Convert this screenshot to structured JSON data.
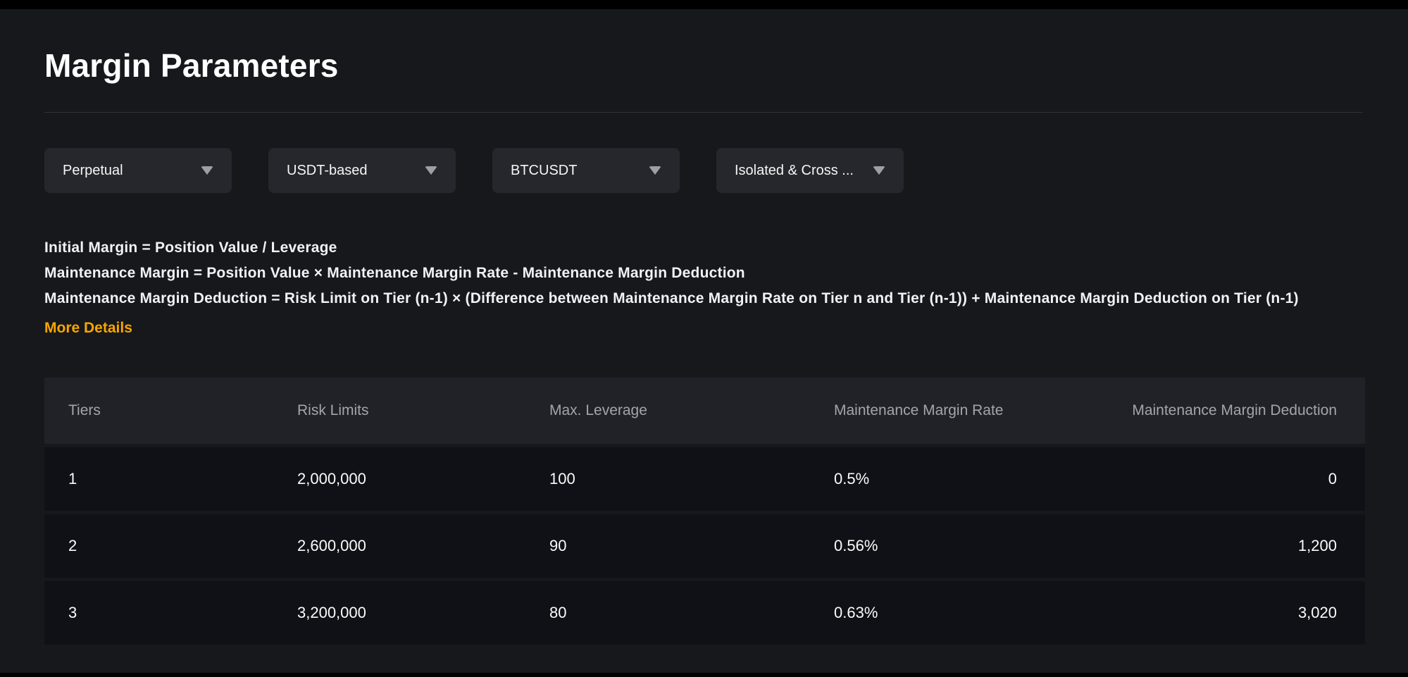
{
  "title": "Margin Parameters",
  "filters": [
    {
      "label": "Perpetual"
    },
    {
      "label": "USDT-based"
    },
    {
      "label": "BTCUSDT"
    },
    {
      "label": "Isolated & Cross ..."
    }
  ],
  "formulas": {
    "line1": "Initial Margin = Position Value / Leverage",
    "line2": "Maintenance Margin = Position Value × Maintenance Margin Rate - Maintenance Margin Deduction",
    "line3": "Maintenance Margin Deduction = Risk Limit on Tier (n-1) × (Difference between Maintenance Margin Rate on Tier n and Tier (n-1)) + Maintenance Margin Deduction on Tier (n-1)",
    "more_details": "More Details"
  },
  "table": {
    "columns": [
      "Tiers",
      "Risk Limits",
      "Max. Leverage",
      "Maintenance Margin Rate",
      "Maintenance Margin Deduction"
    ],
    "rows": [
      [
        "1",
        "2,000,000",
        "100",
        "0.5%",
        "0"
      ],
      [
        "2",
        "2,600,000",
        "90",
        "0.56%",
        "1,200"
      ],
      [
        "3",
        "3,200,000",
        "80",
        "0.63%",
        "3,020"
      ]
    ]
  },
  "colors": {
    "accent": "#f7a600",
    "page_bg": "#17181c",
    "row_bg": "#101116",
    "header_bg": "#212227"
  }
}
